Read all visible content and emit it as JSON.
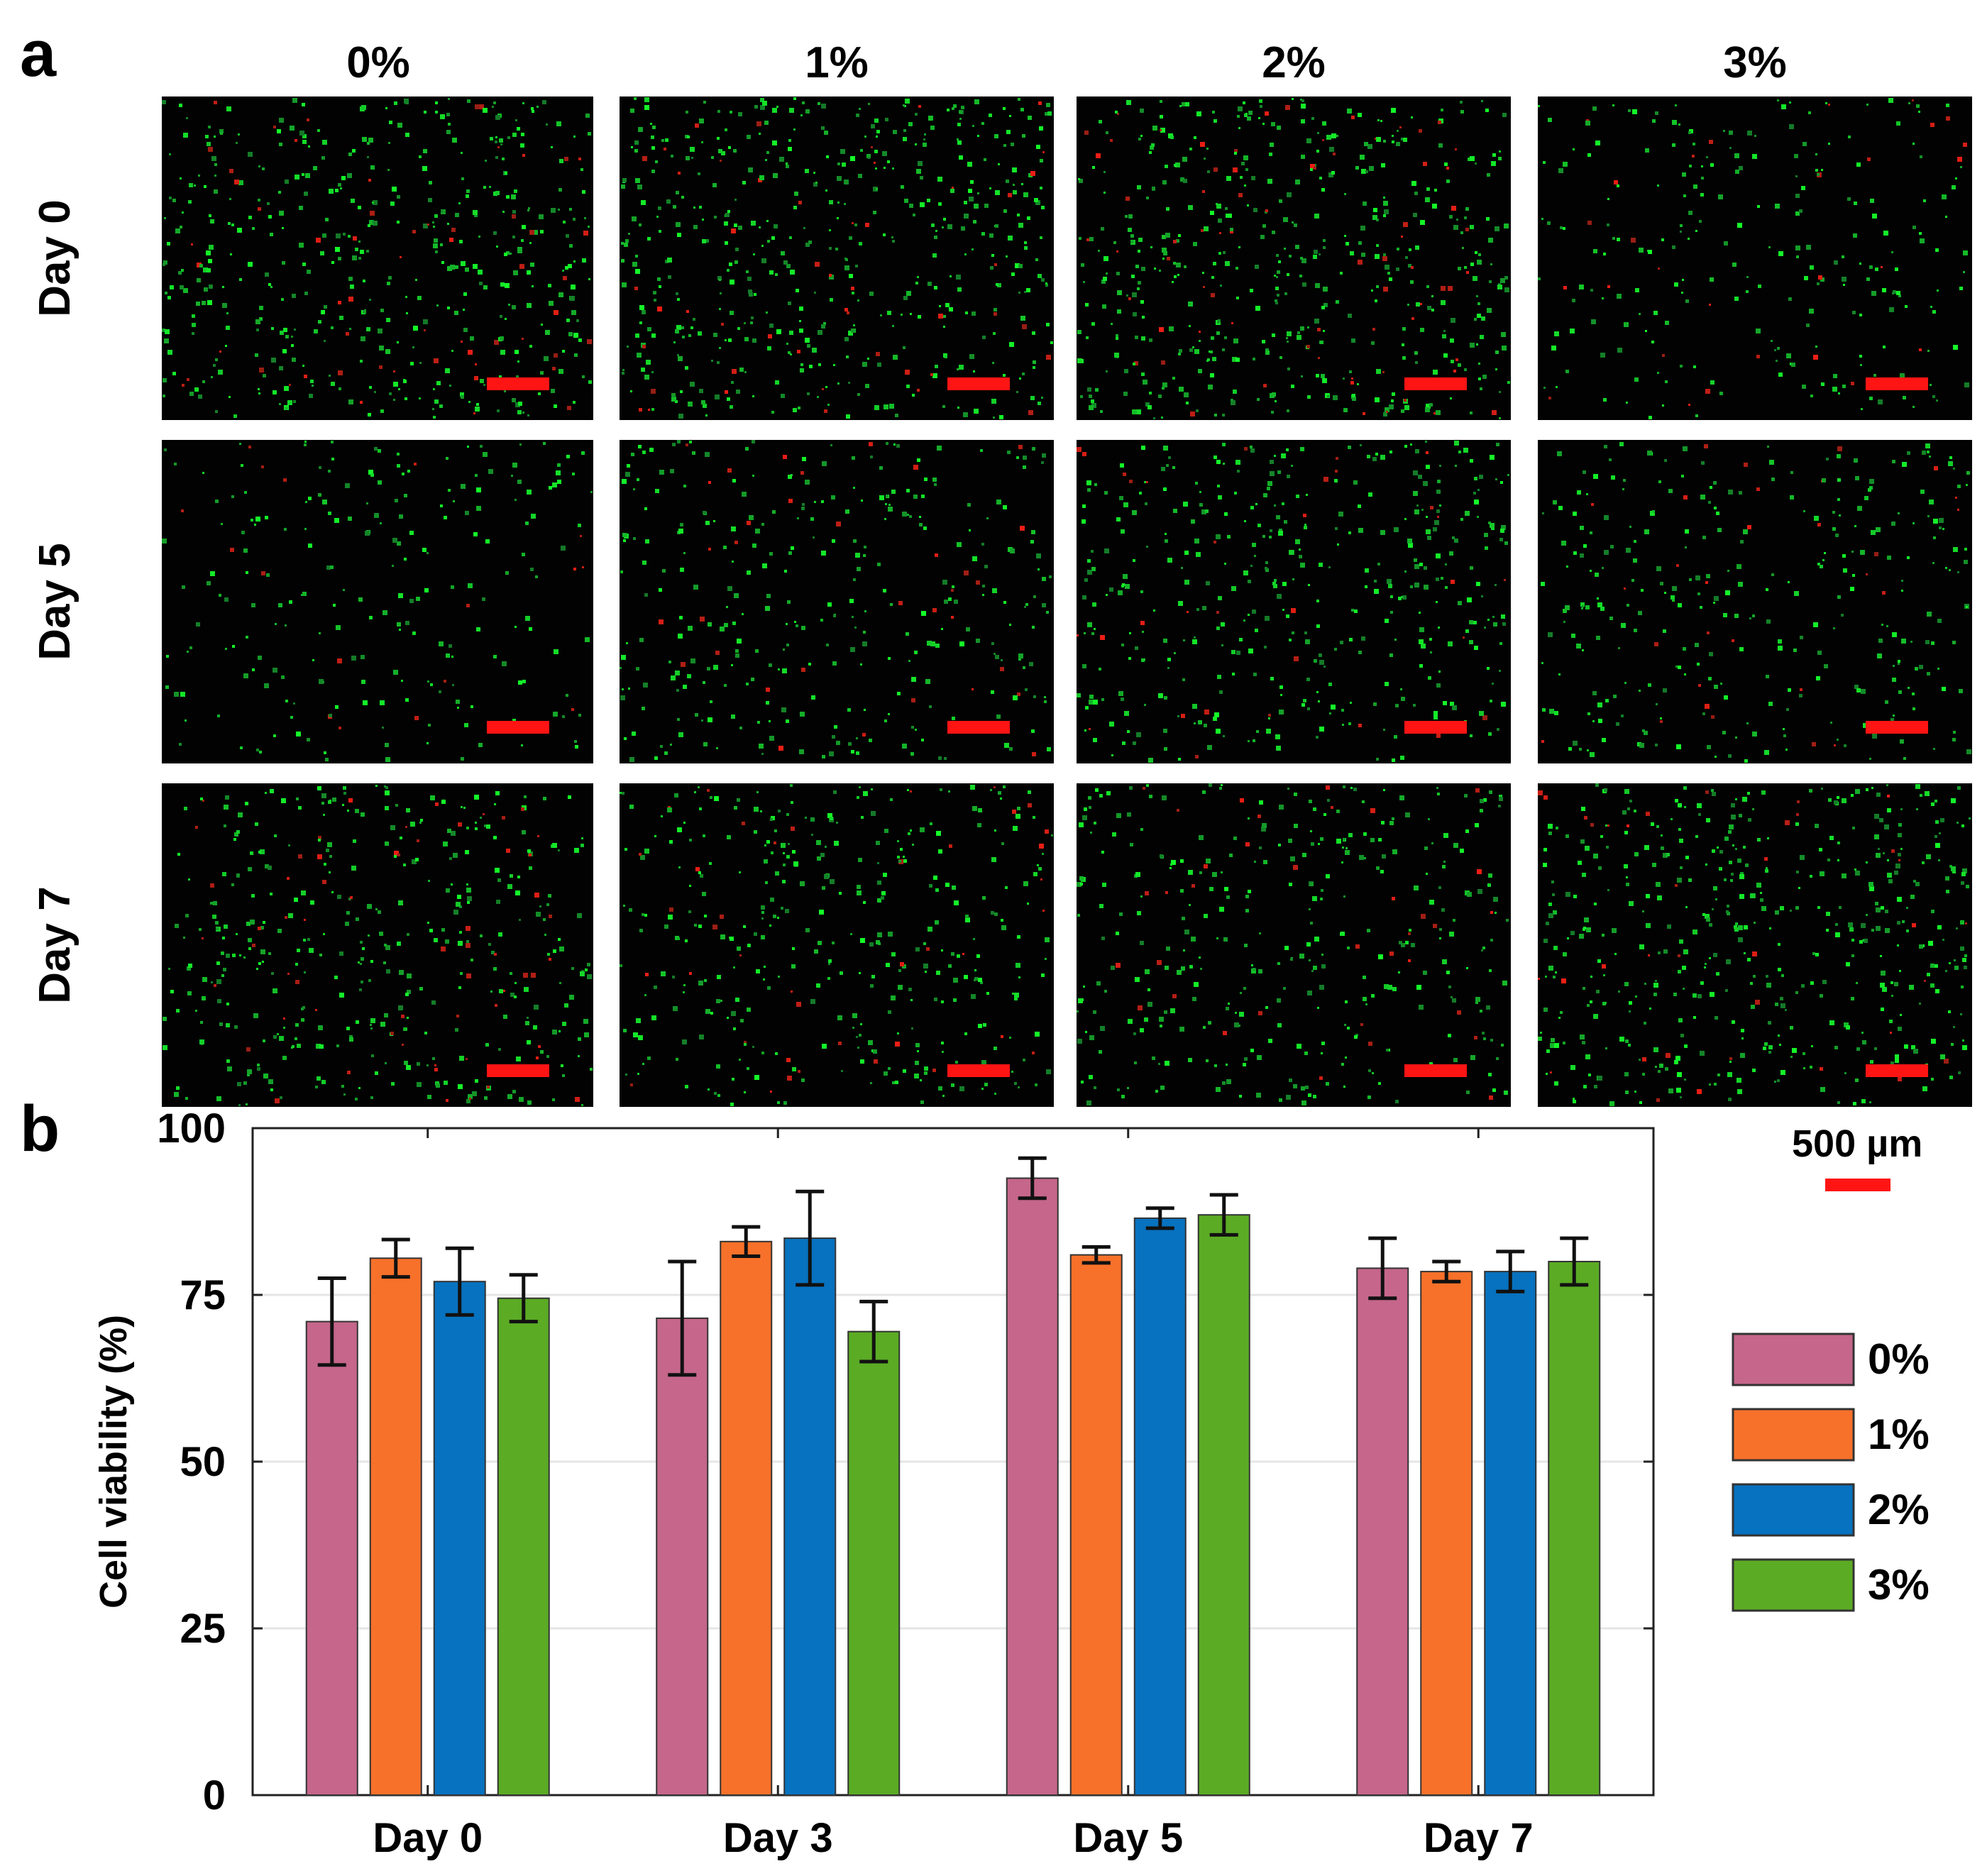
{
  "panel_a": {
    "letter": "a",
    "columns": [
      "0%",
      "1%",
      "2%",
      "3%"
    ],
    "rows": [
      "Day 0",
      "Day 5",
      "Day 7"
    ]
  },
  "panel_b": {
    "letter": "b"
  },
  "scale": {
    "label": "500 µm"
  },
  "chart_data": {
    "type": "bar",
    "title": "",
    "xlabel": "",
    "ylabel": "Cell viability (%)",
    "ylim": [
      0,
      100
    ],
    "yticks": [
      0,
      25,
      50,
      75,
      100
    ],
    "grid": true,
    "legend_position": "right",
    "categories": [
      "Day 0",
      "Day 3",
      "Day 5",
      "Day 7"
    ],
    "series": [
      {
        "name": "0%",
        "color": "#c5668a",
        "values": [
          71,
          71.5,
          92.5,
          79
        ],
        "errors": [
          6.5,
          8.5,
          3,
          4.5
        ]
      },
      {
        "name": "1%",
        "color": "#f7712a",
        "values": [
          80.5,
          83,
          81,
          78.5
        ],
        "errors": [
          2.8,
          2.2,
          1.2,
          1.5
        ]
      },
      {
        "name": "2%",
        "color": "#0772bf",
        "values": [
          77,
          83.5,
          86.5,
          78.5
        ],
        "errors": [
          5,
          7,
          1.5,
          3
        ]
      },
      {
        "name": "3%",
        "color": "#5bab24",
        "values": [
          74.5,
          69.5,
          87,
          80
        ],
        "errors": [
          3.5,
          4.5,
          3,
          3.5
        ]
      }
    ]
  }
}
